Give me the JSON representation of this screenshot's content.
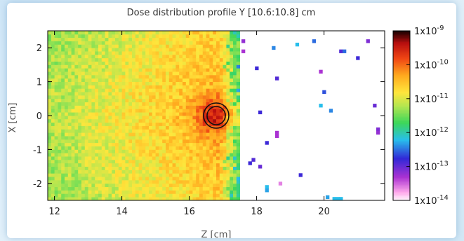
{
  "chart_data": {
    "type": "heatmap",
    "title": "Dose distribution profile Y [10.6:10.8] cm",
    "xlabel": "Z [cm]",
    "ylabel": "X [cm]",
    "xlim": [
      11.8,
      21.8
    ],
    "ylim": [
      -2.5,
      2.5
    ],
    "x_ticks": [
      12,
      14,
      16,
      18,
      20
    ],
    "y_ticks": [
      2,
      1,
      0,
      -1,
      -2
    ],
    "colorbar": {
      "scale": "log",
      "range": [
        1e-14,
        1e-09
      ],
      "tick_labels": [
        "1x10-9",
        "1x10-10",
        "1x10-11",
        "1x10-12",
        "1x10-13",
        "1x10-14"
      ],
      "colors": [
        "#ffffff",
        "#ff9ee8",
        "#a12bd0",
        "#2a2ad8",
        "#33c9e6",
        "#3fdd5a",
        "#c6e65a",
        "#ffe23c",
        "#ff9a1a",
        "#ee3a10",
        "#b80f0f",
        "#000000"
      ]
    },
    "dense_region": {
      "z_min": 11.8,
      "z_max": 17.5,
      "x_min": -2.5,
      "x_max": 2.5
    },
    "hotspot_marker": {
      "z": 16.8,
      "x": 0.0,
      "shape": "double-circle"
    },
    "sparse_points": [
      {
        "z": 17.6,
        "x": 2.2,
        "log10": -13.2
      },
      {
        "z": 17.6,
        "x": 1.9,
        "log10": -13.3
      },
      {
        "z": 18.0,
        "x": 1.4,
        "log10": -12.8
      },
      {
        "z": 18.5,
        "x": 2.0,
        "log10": -12.4
      },
      {
        "z": 19.2,
        "x": 2.1,
        "log10": -12.2
      },
      {
        "z": 19.7,
        "x": 2.2,
        "log10": -12.5
      },
      {
        "z": 20.5,
        "x": 1.9,
        "log10": -12.9
      },
      {
        "z": 20.6,
        "x": 1.9,
        "log10": -12.5
      },
      {
        "z": 21.0,
        "x": 1.7,
        "log10": -12.8
      },
      {
        "z": 21.3,
        "x": 2.2,
        "log10": -13.1
      },
      {
        "z": 19.9,
        "x": 1.3,
        "log10": -13.3
      },
      {
        "z": 18.6,
        "x": 1.1,
        "log10": -12.9
      },
      {
        "z": 18.1,
        "x": 0.1,
        "log10": -12.8
      },
      {
        "z": 20.0,
        "x": 0.7,
        "log10": -12.6
      },
      {
        "z": 19.9,
        "x": 0.3,
        "log10": -12.2
      },
      {
        "z": 20.2,
        "x": 0.15,
        "log10": -12.4
      },
      {
        "z": 21.5,
        "x": 0.3,
        "log10": -13.0
      },
      {
        "z": 21.6,
        "x": -0.4,
        "log10": -13.1
      },
      {
        "z": 21.6,
        "x": -0.5,
        "log10": -13.2
      },
      {
        "z": 18.6,
        "x": -0.5,
        "log10": -13.3
      },
      {
        "z": 18.6,
        "x": -0.6,
        "log10": -13.3
      },
      {
        "z": 18.3,
        "x": -0.8,
        "log10": -12.8
      },
      {
        "z": 17.9,
        "x": -1.3,
        "log10": -12.9
      },
      {
        "z": 17.8,
        "x": -1.4,
        "log10": -12.8
      },
      {
        "z": 18.1,
        "x": -1.5,
        "log10": -13.0
      },
      {
        "z": 19.3,
        "x": -1.75,
        "log10": -12.8
      },
      {
        "z": 18.7,
        "x": -2.0,
        "log10": -13.6
      },
      {
        "z": 18.3,
        "x": -2.1,
        "log10": -12.2
      },
      {
        "z": 18.3,
        "x": -2.2,
        "log10": -12.3
      },
      {
        "z": 20.1,
        "x": -2.4,
        "log10": -12.3
      },
      {
        "z": 20.3,
        "x": -2.45,
        "log10": -12.2
      },
      {
        "z": 20.4,
        "x": -2.45,
        "log10": -12.2
      },
      {
        "z": 20.5,
        "x": -2.45,
        "log10": -12.2
      }
    ],
    "grid": false,
    "legend": "none"
  }
}
